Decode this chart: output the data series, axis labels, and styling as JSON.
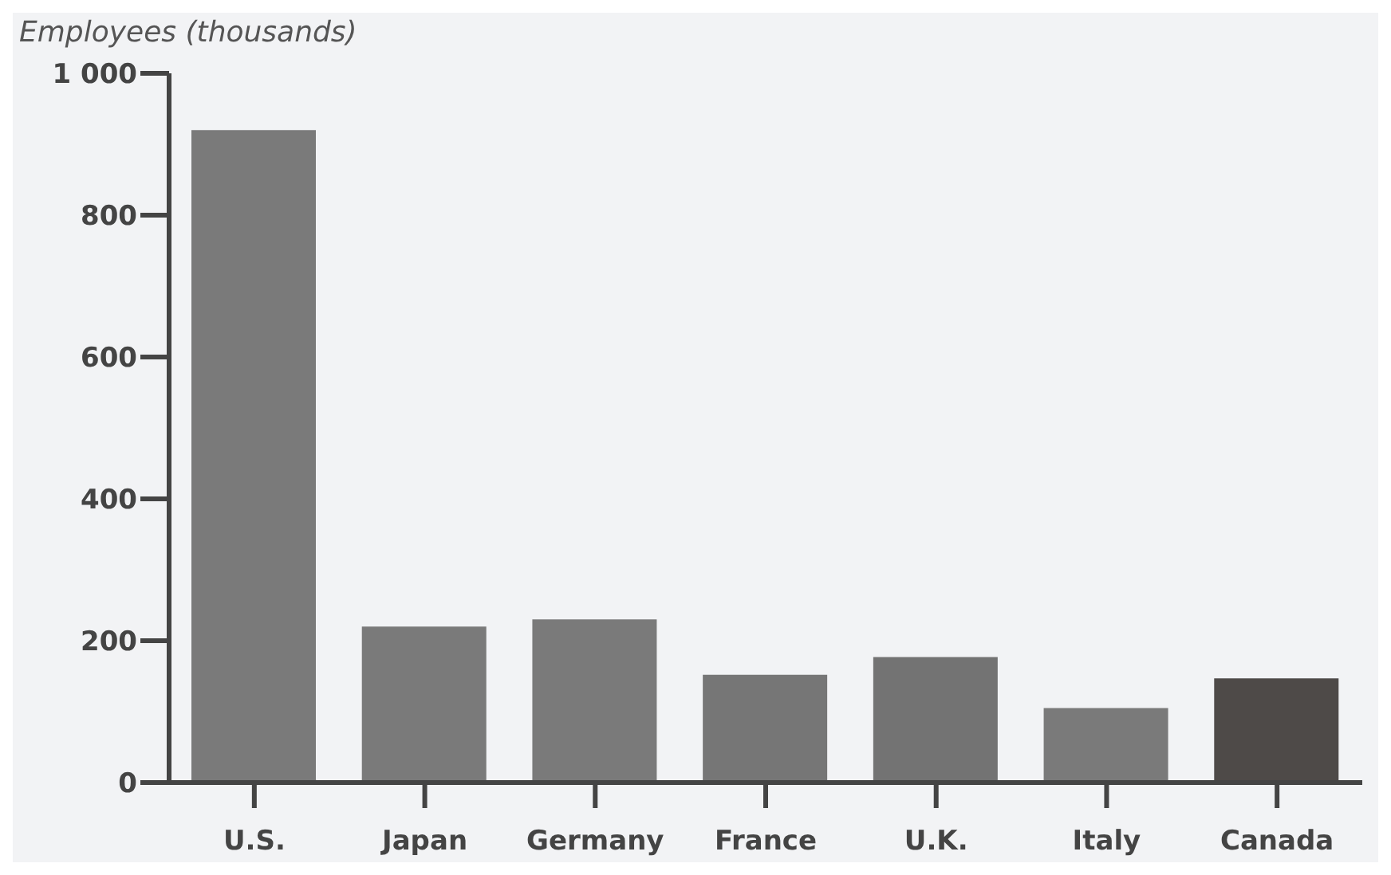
{
  "chart_data": {
    "type": "bar",
    "ylabel": "Employees (thousands)",
    "categories": [
      "U.S.",
      "Japan",
      "Germany",
      "France",
      "U.K.",
      "Italy",
      "Canada"
    ],
    "values": [
      920,
      220,
      230,
      152,
      177,
      105,
      147
    ],
    "colors": [
      "#7a7a7a",
      "#7a7a7a",
      "#7a7a7a",
      "#767676",
      "#737373",
      "#7a7a7a",
      "#4e4a48"
    ],
    "ylim": [
      0,
      1000
    ],
    "yticks": [
      0,
      200,
      400,
      600,
      800,
      {
        "value": 1000,
        "label": "1 000"
      }
    ],
    "grid": false
  }
}
